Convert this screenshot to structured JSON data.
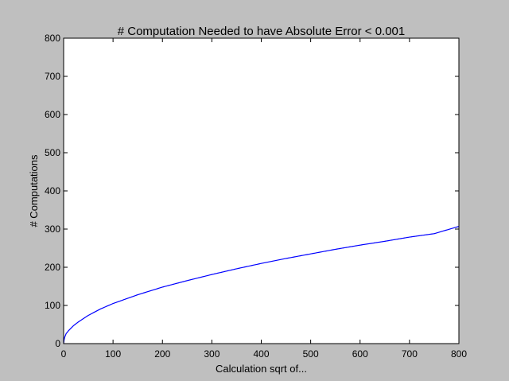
{
  "colors": {
    "figure_background": "#bfbfbf",
    "plot_background": "#ffffff",
    "line": "#0000ff",
    "axes": "#000000"
  },
  "chart_data": {
    "type": "line",
    "title": "# Computation Needed to have Absolute Error < 0.001",
    "xlabel": "Calculation sqrt of...",
    "ylabel": "# Computations",
    "xlim": [
      0,
      800
    ],
    "ylim": [
      0,
      800
    ],
    "xticks": [
      0,
      100,
      200,
      300,
      400,
      500,
      600,
      700,
      800
    ],
    "yticks": [
      0,
      100,
      200,
      300,
      400,
      500,
      600,
      700,
      800
    ],
    "xtick_labels": [
      "0",
      "100",
      "200",
      "300",
      "400",
      "500",
      "600",
      "700",
      "800"
    ],
    "ytick_labels": [
      "0",
      "100",
      "200",
      "300",
      "400",
      "500",
      "600",
      "700",
      "800"
    ],
    "grid": false,
    "legend": "none",
    "series": [
      {
        "color": "#0000ff",
        "x": [
          0,
          1,
          2,
          5,
          10,
          20,
          30,
          50,
          75,
          100,
          150,
          200,
          250,
          300,
          350,
          400,
          450,
          500,
          550,
          600,
          650,
          700,
          750,
          800
        ],
        "y": [
          0,
          10,
          16,
          26,
          34,
          47,
          57,
          74,
          91,
          105,
          128,
          148,
          165,
          181,
          196,
          210,
          223,
          235,
          247,
          258,
          268,
          279,
          288,
          307
        ]
      }
    ]
  }
}
